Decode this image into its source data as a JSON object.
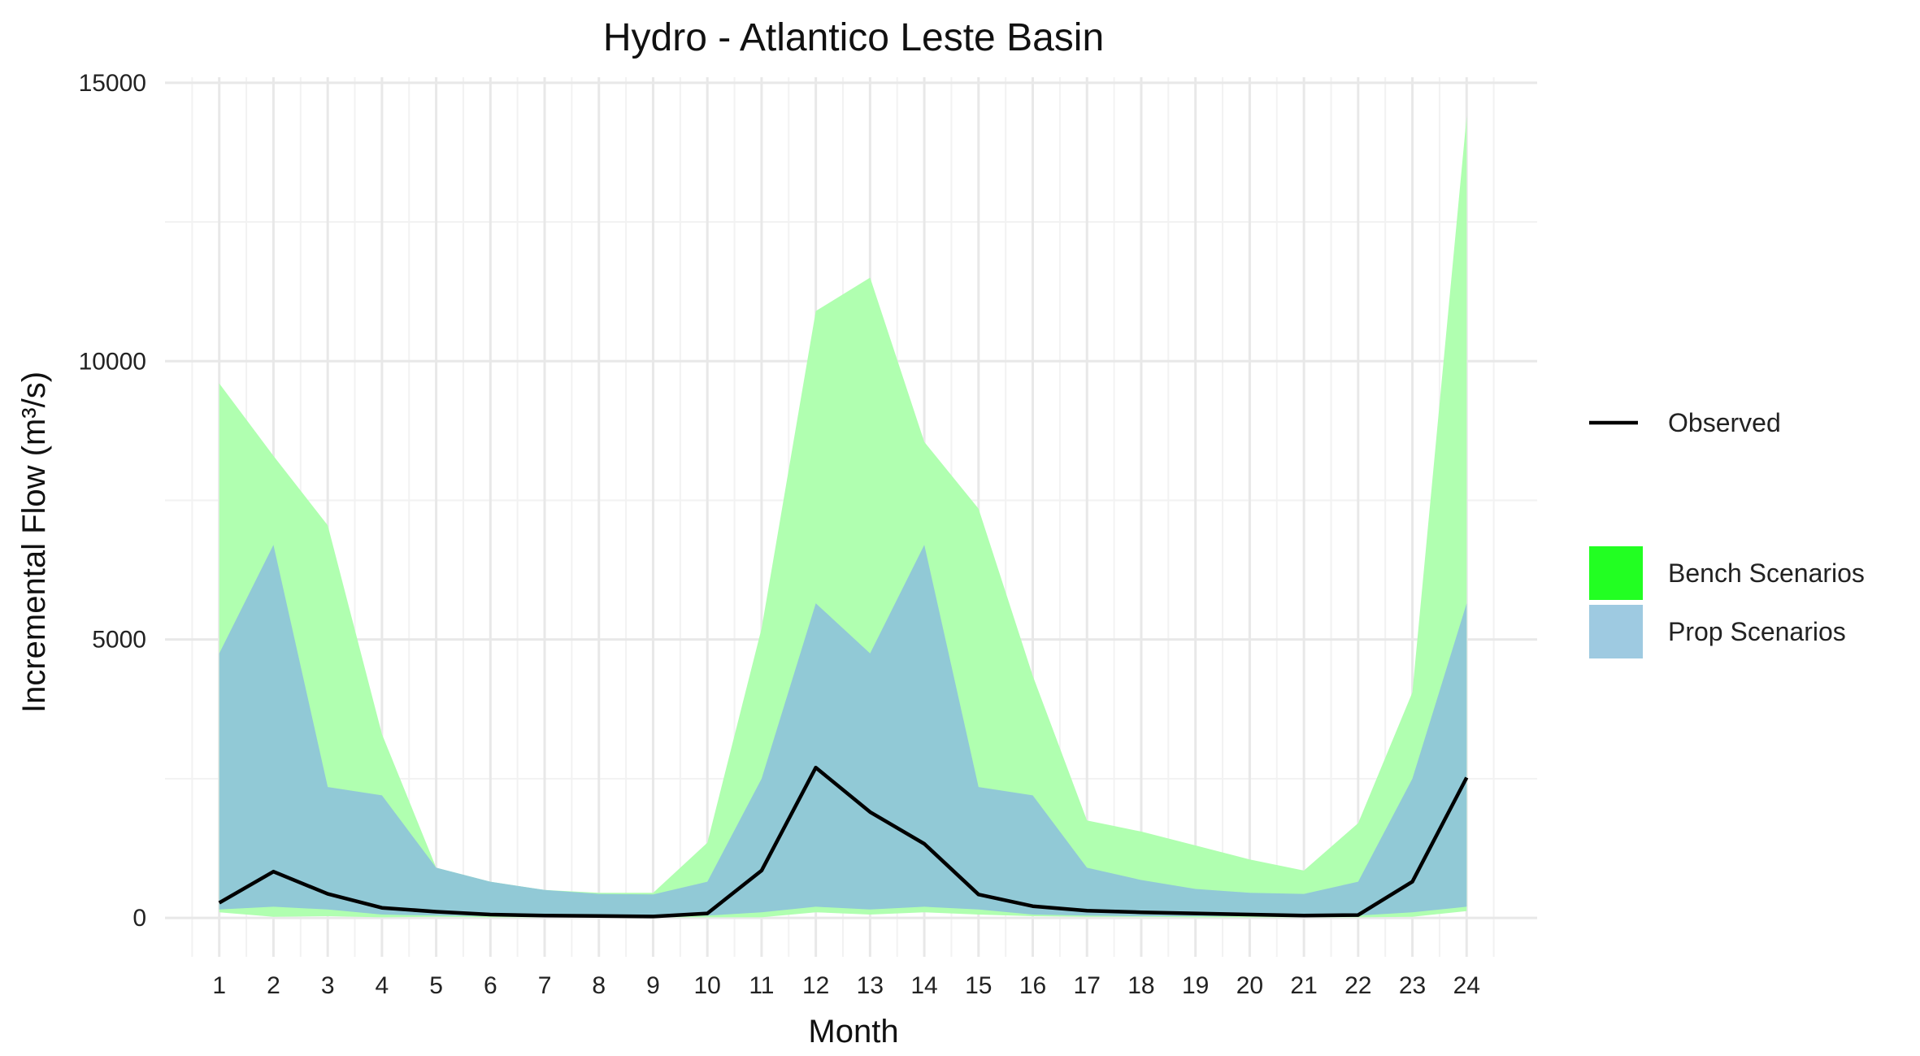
{
  "chart_data": {
    "type": "area",
    "title": "Hydro - Atlantico Leste Basin",
    "xlabel": "Month",
    "ylabel": "Incremental Flow (m³/s)",
    "x": [
      1,
      2,
      3,
      4,
      5,
      6,
      7,
      8,
      9,
      10,
      11,
      12,
      13,
      14,
      15,
      16,
      17,
      18,
      19,
      20,
      21,
      22,
      23,
      24
    ],
    "x_tick_labels": [
      "1",
      "2",
      "3",
      "4",
      "5",
      "6",
      "7",
      "8",
      "9",
      "10",
      "11",
      "12",
      "13",
      "14",
      "15",
      "16",
      "17",
      "18",
      "19",
      "20",
      "21",
      "22",
      "23",
      "24"
    ],
    "xlim": [
      0,
      25.3
    ],
    "ylim": [
      -700,
      15100
    ],
    "y_ticks": [
      0,
      5000,
      10000,
      15000
    ],
    "y_tick_labels": [
      "0",
      "5000",
      "10000",
      "15000"
    ],
    "grid": true,
    "legend_position": "right",
    "series": [
      {
        "name": "Bench Scenarios",
        "kind": "ribbon",
        "color": "#22ff22",
        "fill_color": "#b0ffb0",
        "upper": [
          9600,
          8300,
          7050,
          3300,
          900,
          650,
          500,
          450,
          450,
          1350,
          5200,
          10900,
          11500,
          8550,
          7350,
          4350,
          1750,
          1550,
          1300,
          1050,
          850,
          1700,
          4050,
          14400
        ],
        "lower": [
          100,
          20,
          30,
          10,
          20,
          10,
          10,
          10,
          10,
          10,
          10,
          100,
          60,
          100,
          60,
          30,
          20,
          20,
          10,
          10,
          10,
          10,
          20,
          120
        ]
      },
      {
        "name": "Prop Scenarios",
        "kind": "ribbon",
        "color": "#9ecae1",
        "fill_color": "#91c9d6",
        "upper": [
          4750,
          6700,
          2350,
          2200,
          900,
          650,
          500,
          430,
          420,
          650,
          2500,
          5650,
          4750,
          6700,
          2350,
          2200,
          900,
          680,
          520,
          450,
          430,
          650,
          2500,
          5650
        ],
        "lower": [
          150,
          200,
          150,
          60,
          40,
          30,
          30,
          30,
          30,
          40,
          100,
          200,
          150,
          200,
          150,
          60,
          40,
          30,
          30,
          30,
          30,
          40,
          100,
          200
        ]
      },
      {
        "name": "Observed",
        "kind": "line",
        "color": "#000000",
        "values": [
          270,
          830,
          430,
          180,
          110,
          60,
          40,
          35,
          25,
          80,
          850,
          2700,
          1900,
          1330,
          420,
          210,
          130,
          100,
          80,
          60,
          40,
          50,
          650,
          2520
        ]
      }
    ]
  }
}
